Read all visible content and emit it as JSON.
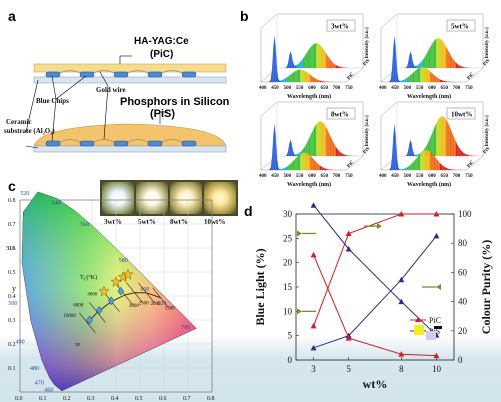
{
  "panels": {
    "a": {
      "label": "a",
      "pic_title": "HA-YAG:Ce",
      "pic_sub": "(PiC)",
      "pis_title": "Phosphors in Silicon",
      "pis_sub": "(PiS)",
      "blue_chips": "Blue Chips",
      "gold_wire": "Gold wire",
      "substrate_1": "Ceramic",
      "substrate_2": "substrate (Al₂O₃)"
    },
    "b": {
      "label": "b",
      "wavelength_label": "Wavelength (nm)",
      "intensity_label": "Intensity (a.u.)",
      "ticks": [
        "400",
        "450",
        "500",
        "550",
        "600",
        "650",
        "700",
        "750"
      ],
      "series_labels": [
        "PiS",
        "PiC"
      ],
      "tiles": [
        {
          "conc": "3wt%"
        },
        {
          "conc": "5wt%"
        },
        {
          "conc": "8wt%"
        },
        {
          "conc": "10wt%"
        }
      ]
    },
    "c": {
      "label": "c",
      "photo_labels": [
        "3wt%",
        "5wt%",
        "8wt%",
        "10wt%"
      ],
      "tc_label": "T",
      "tc_sub": "C",
      "tc_unit": "(°K)",
      "y_label": "y",
      "x_ticks": [
        "0.0",
        "0.1",
        "0.2",
        "0.3",
        "0.4",
        "0.5",
        "0.6",
        "0.7",
        "0.8"
      ],
      "y_ticks": [
        "0.0",
        "0.1",
        "0.2",
        "0.3",
        "0.4",
        "0.5",
        "0.6",
        "0.7",
        "0.8"
      ],
      "locus_nm": [
        "460",
        "470",
        "480",
        "490",
        "500",
        "510",
        "520",
        "540",
        "560",
        "580",
        "600",
        "620",
        "700"
      ],
      "cct_labels": [
        "10000",
        "6000",
        "4000",
        "3000",
        "2500",
        "2000",
        "1500",
        "∞"
      ]
    },
    "d": {
      "label": "d",
      "xlabel": "wt%",
      "ylabel_left": "Blue Light (%)",
      "ylabel_right": "Colour Purity (%)",
      "x_ticks": [
        "3",
        "5",
        "8",
        "10"
      ],
      "y_left_ticks": [
        "0",
        "5",
        "10",
        "15",
        "20",
        "25",
        "30"
      ],
      "y_right_ticks": [
        "0",
        "20",
        "40",
        "60",
        "80",
        "100"
      ],
      "legend": [
        "PiC",
        "PiS"
      ]
    }
  },
  "colors": {
    "pic": "#d01f25",
    "pis": "#2b2c8a",
    "arrow": "#7a8a30"
  },
  "chart_data": [
    {
      "type": "line",
      "xlabel": "wt%",
      "ylabel": "Blue Light (%)",
      "y2label": "Colour Purity (%)",
      "x": [
        3,
        5,
        8,
        10
      ],
      "xlim": [
        2,
        11
      ],
      "ylim": [
        0,
        30
      ],
      "y2lim": [
        0,
        100
      ],
      "series": [
        {
          "name": "PiC",
          "axis": "left",
          "values": [
            7.0,
            26.0,
            30.0,
            30.0
          ]
        },
        {
          "name": "PiS",
          "axis": "left",
          "values": [
            2.5,
            5.0,
            16.5,
            25.5
          ]
        },
        {
          "name": "PiC",
          "axis": "right",
          "values": [
            72,
            15,
            4,
            3
          ]
        },
        {
          "name": "PiS",
          "axis": "right",
          "values": [
            107,
            76,
            40,
            17
          ]
        }
      ],
      "legend_position": "right"
    }
  ]
}
